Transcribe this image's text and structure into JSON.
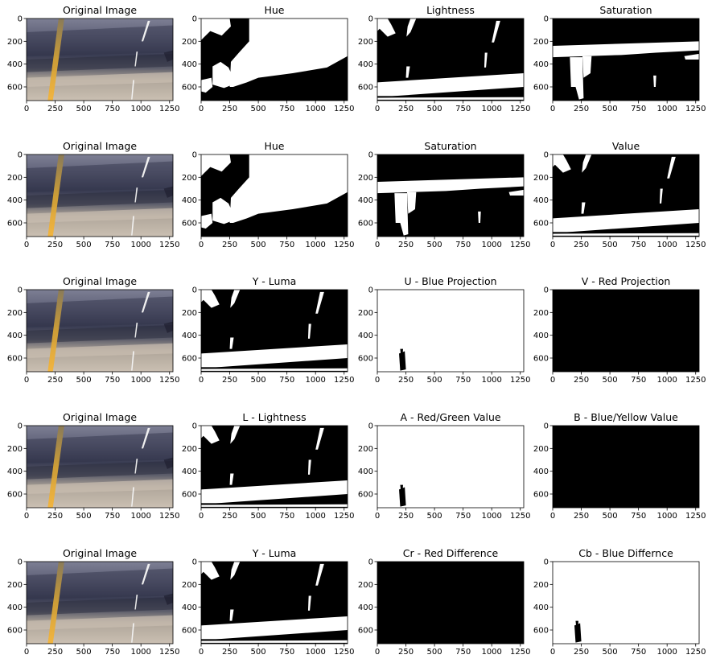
{
  "chart_data": {
    "type": "image-grid",
    "rows": 5,
    "cols": 4,
    "xlim": [
      0,
      1280
    ],
    "ylim": [
      720,
      0
    ],
    "xticks": [
      0,
      250,
      500,
      750,
      1000,
      1250
    ],
    "yticks": [
      0,
      200,
      400,
      600
    ],
    "panels": [
      [
        {
          "title": "Original Image",
          "image": "road-photo"
        },
        {
          "title": "Hue",
          "image": "hue-mask"
        },
        {
          "title": "Lightness",
          "image": "lane-mask"
        },
        {
          "title": "Saturation",
          "image": "saturation-mask"
        }
      ],
      [
        {
          "title": "Original Image",
          "image": "road-photo"
        },
        {
          "title": "Hue",
          "image": "hue-mask"
        },
        {
          "title": "Saturation",
          "image": "saturation-mask"
        },
        {
          "title": "Value",
          "image": "lane-mask"
        }
      ],
      [
        {
          "title": "Original Image",
          "image": "road-photo"
        },
        {
          "title": "Y - Luma",
          "image": "lane-mask"
        },
        {
          "title": "U - Blue Projection",
          "image": "white-with-yellow-line"
        },
        {
          "title": "V - Red Projection",
          "image": "all-black"
        }
      ],
      [
        {
          "title": "Original Image",
          "image": "road-photo"
        },
        {
          "title": "L - Lightness",
          "image": "lane-mask"
        },
        {
          "title": "A - Red/Green Value",
          "image": "white-with-yellow-line"
        },
        {
          "title": "B - Blue/Yellow Value",
          "image": "all-black"
        }
      ],
      [
        {
          "title": "Original Image",
          "image": "road-photo"
        },
        {
          "title": "Y - Luma",
          "image": "lane-mask"
        },
        {
          "title": "Cr - Red Difference",
          "image": "all-black"
        },
        {
          "title": "Cb - Blue Differnce",
          "image": "white-with-yellow-line"
        }
      ]
    ]
  }
}
